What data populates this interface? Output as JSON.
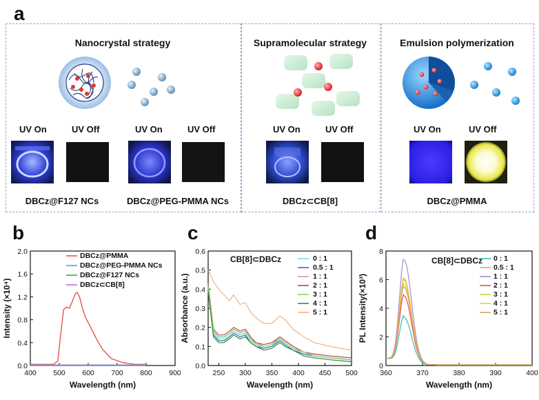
{
  "panel_a": {
    "letter": "a",
    "strategies": [
      {
        "title": "Nanocrystal strategy",
        "uv_labels": [
          "UV On",
          "UV Off",
          "UV On",
          "UV Off"
        ],
        "samples": [
          "DBCz@F127 NCs",
          "DBCz@PEG-PMMA NCs"
        ]
      },
      {
        "title": "Supramolecular strategy",
        "uv_labels": [
          "UV On",
          "UV Off"
        ],
        "samples": [
          "DBCz⊂CB[8]"
        ]
      },
      {
        "title": "Emulsion polymerization",
        "uv_labels": [
          "UV On",
          "UV Off"
        ],
        "samples": [
          "DBCz@PMMA"
        ]
      }
    ],
    "colors": {
      "border": "#8aa6c8",
      "uv_on_blue": "#3a5cff",
      "uv_off_dark": "#111111",
      "afterglow_yellow": "#f4f47a"
    }
  },
  "panel_b": {
    "letter": "b",
    "chart_data": {
      "type": "line",
      "xlabel": "Wavelength (nm)",
      "ylabel": "Intensity (×10⁴)",
      "xlim": [
        400,
        900
      ],
      "ylim": [
        0,
        2.0
      ],
      "xticks": [
        400,
        500,
        600,
        700,
        800,
        900
      ],
      "yticks": [
        0.0,
        0.4,
        0.8,
        1.2,
        1.6,
        2.0
      ],
      "ytick_labels": [
        "0.0",
        "0.4",
        "0.8",
        "1.2",
        "1.6",
        "2.0"
      ],
      "legend": "top-right",
      "series": [
        {
          "name": "DBCz@PMMA",
          "color": "#e8534e",
          "x": [
            400,
            480,
            495,
            505,
            515,
            525,
            535,
            545,
            555,
            562,
            570,
            580,
            590,
            600,
            615,
            630,
            650,
            680,
            720,
            760,
            800
          ],
          "y": [
            0.02,
            0.02,
            0.08,
            0.55,
            0.98,
            1.02,
            1.0,
            1.12,
            1.25,
            1.28,
            1.2,
            1.0,
            0.85,
            0.75,
            0.6,
            0.45,
            0.28,
            0.12,
            0.05,
            0.02,
            0.02
          ]
        },
        {
          "name": "DBCz@PEG-PMMA NCs",
          "color": "#5b9bd5",
          "x": [
            400,
            800
          ],
          "y": [
            0.01,
            0.01
          ]
        },
        {
          "name": "DBCz@F127 NCs",
          "color": "#3aaa4a",
          "x": [
            400,
            800
          ],
          "y": [
            0.005,
            0.005
          ]
        },
        {
          "name": "DBCz⊂CB[8]",
          "color": "#c06fe0",
          "x": [
            400,
            800
          ],
          "y": [
            0.0,
            0.0
          ]
        }
      ]
    }
  },
  "panel_c": {
    "letter": "c",
    "chart_data": {
      "type": "line",
      "xlabel": "Wavelength (nm)",
      "ylabel": "Absorbance (a.u.)",
      "xlim": [
        230,
        500
      ],
      "ylim": [
        0,
        0.6
      ],
      "xticks": [
        250,
        300,
        350,
        400,
        450,
        500
      ],
      "yticks": [
        0.0,
        0.1,
        0.2,
        0.3,
        0.4,
        0.5,
        0.6
      ],
      "ytick_labels": [
        "0.0",
        "0.1",
        "0.2",
        "0.3",
        "0.4",
        "0.5",
        "0.6"
      ],
      "annotation": "CB[8]⊂DBCz",
      "legend": "top-right",
      "x": [
        230,
        240,
        250,
        260,
        270,
        278,
        290,
        300,
        310,
        320,
        335,
        350,
        365,
        375,
        390,
        410,
        430,
        460,
        500
      ],
      "series": [
        {
          "name": "0  :  1",
          "color": "#7fd6e8",
          "y": [
            0.42,
            0.17,
            0.14,
            0.14,
            0.16,
            0.18,
            0.16,
            0.17,
            0.13,
            0.11,
            0.09,
            0.1,
            0.14,
            0.12,
            0.09,
            0.06,
            0.05,
            0.04,
            0.03
          ]
        },
        {
          "name": "0.5  :  1",
          "color": "#2b6fbf",
          "y": [
            0.4,
            0.16,
            0.13,
            0.13,
            0.15,
            0.17,
            0.15,
            0.16,
            0.12,
            0.1,
            0.09,
            0.1,
            0.13,
            0.11,
            0.08,
            0.06,
            0.05,
            0.04,
            0.03
          ]
        },
        {
          "name": "1  :  1",
          "color": "#e88ca8",
          "y": [
            0.41,
            0.18,
            0.15,
            0.15,
            0.17,
            0.19,
            0.17,
            0.18,
            0.14,
            0.12,
            0.1,
            0.11,
            0.15,
            0.13,
            0.1,
            0.07,
            0.06,
            0.05,
            0.04
          ]
        },
        {
          "name": "2  :  1",
          "color": "#b44a4a",
          "y": [
            0.43,
            0.19,
            0.16,
            0.16,
            0.18,
            0.2,
            0.18,
            0.19,
            0.15,
            0.12,
            0.11,
            0.12,
            0.15,
            0.13,
            0.1,
            0.07,
            0.06,
            0.05,
            0.04
          ]
        },
        {
          "name": "3  :  1",
          "color": "#8ed16a",
          "y": [
            0.42,
            0.18,
            0.15,
            0.15,
            0.17,
            0.19,
            0.17,
            0.18,
            0.14,
            0.11,
            0.1,
            0.11,
            0.14,
            0.12,
            0.09,
            0.07,
            0.05,
            0.04,
            0.03
          ]
        },
        {
          "name": "4  :  1",
          "color": "#2e8b3a",
          "y": [
            0.39,
            0.15,
            0.12,
            0.12,
            0.14,
            0.16,
            0.14,
            0.15,
            0.12,
            0.1,
            0.08,
            0.09,
            0.12,
            0.1,
            0.08,
            0.05,
            0.04,
            0.03,
            0.02
          ]
        },
        {
          "name": "5  :  1",
          "color": "#f2b183",
          "y": [
            0.5,
            0.44,
            0.4,
            0.37,
            0.34,
            0.37,
            0.32,
            0.33,
            0.28,
            0.25,
            0.22,
            0.22,
            0.26,
            0.24,
            0.19,
            0.15,
            0.12,
            0.1,
            0.08
          ]
        }
      ]
    }
  },
  "panel_d": {
    "letter": "d",
    "chart_data": {
      "type": "line",
      "xlabel": "Wavelength (nm)",
      "ylabel": "PL Intensity(×10³)",
      "xlim": [
        360,
        400
      ],
      "ylim": [
        0,
        8
      ],
      "xticks": [
        360,
        370,
        380,
        390,
        400
      ],
      "yticks": [
        0,
        2,
        4,
        6,
        8
      ],
      "ytick_labels": [
        "0",
        "2",
        "4",
        "6",
        "8"
      ],
      "annotation": "CB[8]⊂DBCz",
      "legend": "top-right",
      "series": [
        {
          "name": "0  :  1",
          "color": "#3ac0a8",
          "peak": 3.3
        },
        {
          "name": "0.5  :  1",
          "color": "#f0a050",
          "peak": 5.9
        },
        {
          "name": "1  :  1",
          "color": "#9c8fd0",
          "peak": 7.3
        },
        {
          "name": "2  :  1",
          "color": "#e8534e",
          "peak": 4.8
        },
        {
          "name": "3  :  1",
          "color": "#b8d84a",
          "peak": 5.6
        },
        {
          "name": "4  :  1",
          "color": "#f5c542",
          "peak": 6.0
        },
        {
          "name": "5  :  1",
          "color": "#d8a060",
          "peak": 5.4
        }
      ],
      "peak_x": 365,
      "baseline": 0.05
    }
  }
}
